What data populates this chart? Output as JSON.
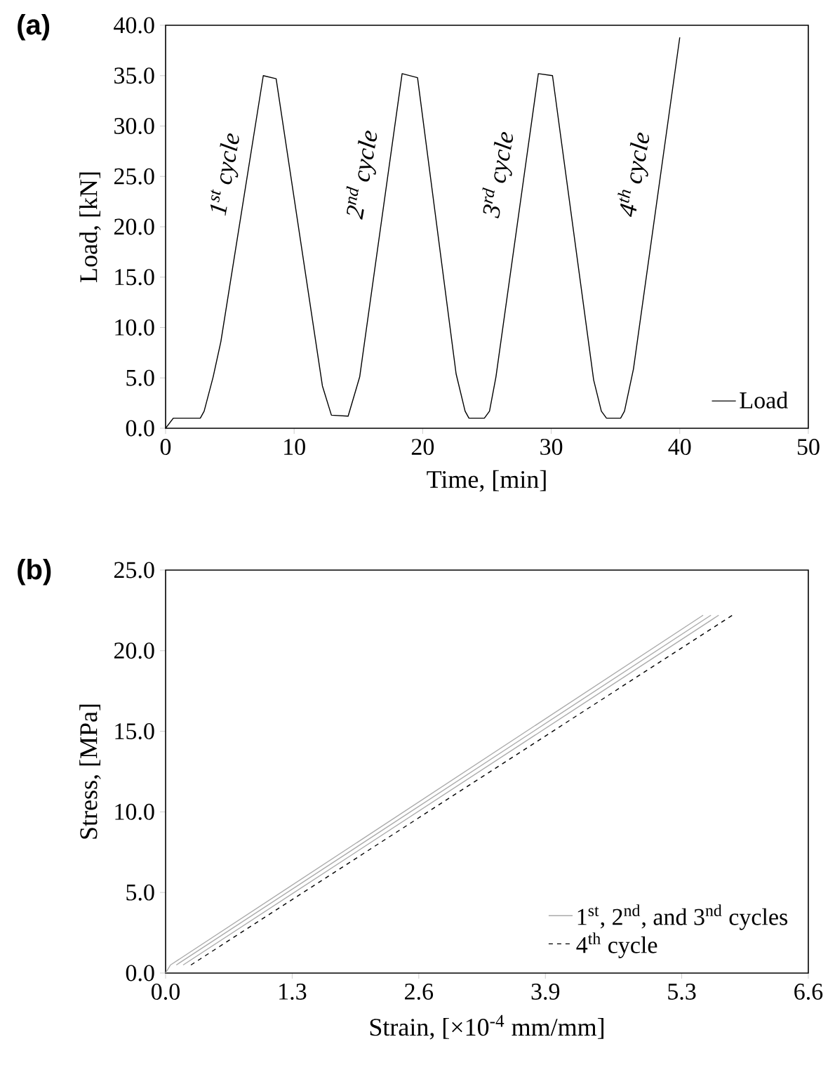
{
  "chart_data": [
    {
      "type": "line",
      "title": "(a)",
      "xlabel": "Time, [min]",
      "ylabel": "Load, [kN]",
      "x": [
        0,
        0.6,
        2.7,
        3.0,
        3.7,
        4.3,
        7.6,
        8.6,
        12.2,
        12.9,
        14.2,
        15.1,
        18.4,
        19.6,
        22.6,
        23.3,
        23.6,
        24.8,
        25.2,
        25.7,
        29.0,
        30.1,
        33.3,
        33.9,
        34.3,
        35.4,
        35.7,
        36.4,
        40.0
      ],
      "series": [
        {
          "name": "Load",
          "color": "#000000",
          "line_style": "solid",
          "values": [
            0,
            1.0,
            1.0,
            1.7,
            5.1,
            8.6,
            35.0,
            34.7,
            4.2,
            1.3,
            1.2,
            5.1,
            35.2,
            34.8,
            5.4,
            1.7,
            1.0,
            1.0,
            1.7,
            5.1,
            35.2,
            35.0,
            4.8,
            1.7,
            1.0,
            1.0,
            1.7,
            5.9,
            38.8
          ]
        }
      ],
      "xlim": [
        0,
        50
      ],
      "ylim": [
        0,
        40
      ],
      "xticks": [
        0,
        10,
        20,
        30,
        40,
        50
      ],
      "yticks": [
        {
          "value": 0,
          "label": "0.0"
        },
        {
          "value": 5,
          "label": "5.0"
        },
        {
          "value": 10,
          "label": "10.0"
        },
        {
          "value": 15,
          "label": "15.0"
        },
        {
          "value": 20,
          "label": "20.0"
        },
        {
          "value": 25,
          "label": "25.0"
        },
        {
          "value": 30,
          "label": "30.0"
        },
        {
          "value": 35,
          "label": "35.0"
        },
        {
          "value": 40,
          "label": "40.0"
        }
      ],
      "legend": "bottom right",
      "annotations": [
        "1$^{st}$ cycle",
        "2$^{nd}$ cycle",
        "3$^{rd}$ cycle",
        "4$^{th}$ cycle"
      ]
    },
    {
      "type": "line",
      "title": "(b)",
      "xlabel": "Strain, [×10$^{-4}$ mm/mm]",
      "ylabel": "Stress, [MPa]",
      "series": [
        {
          "name": "1$^{st}$, 2$^{nd}$, and 3$^{nd}$ cycles",
          "color": "#aaaaaa",
          "line_style": "solid",
          "x": [
            0,
            0.05,
            5.52
          ],
          "values": [
            0,
            0.5,
            22.2
          ]
        },
        {
          "color": "#aaaaaa",
          "line_style": "solid",
          "x": [
            0.11,
            5.6
          ],
          "values": [
            0.5,
            22.2
          ]
        },
        {
          "color": "#aaaaaa",
          "line_style": "solid",
          "x": [
            0.18,
            5.68
          ],
          "values": [
            0.5,
            22.2
          ]
        },
        {
          "name": "4$^{th}$ cycle",
          "color": "#000000",
          "line_style": "dashed",
          "x": [
            0.26,
            5.82
          ],
          "values": [
            0.5,
            22.2
          ]
        }
      ],
      "xlim": [
        0,
        6.6
      ],
      "ylim": [
        0,
        25
      ],
      "xticks": [
        {
          "value": 0,
          "label": "0.0"
        },
        {
          "value": 1.3,
          "label": "1.3"
        },
        {
          "value": 2.6,
          "label": "2.6"
        },
        {
          "value": 3.9,
          "label": "3.9"
        },
        {
          "value": 5.3,
          "label": "5.3"
        },
        {
          "value": 6.6,
          "label": "6.6"
        }
      ],
      "yticks": [
        {
          "value": 0,
          "label": "0.0"
        },
        {
          "value": 5,
          "label": "5.0"
        },
        {
          "value": 10,
          "label": "10.0"
        },
        {
          "value": 15,
          "label": "15.0"
        },
        {
          "value": 20,
          "label": "20.0"
        },
        {
          "value": 25,
          "label": "25.0"
        }
      ],
      "legend": "bottom right"
    }
  ]
}
